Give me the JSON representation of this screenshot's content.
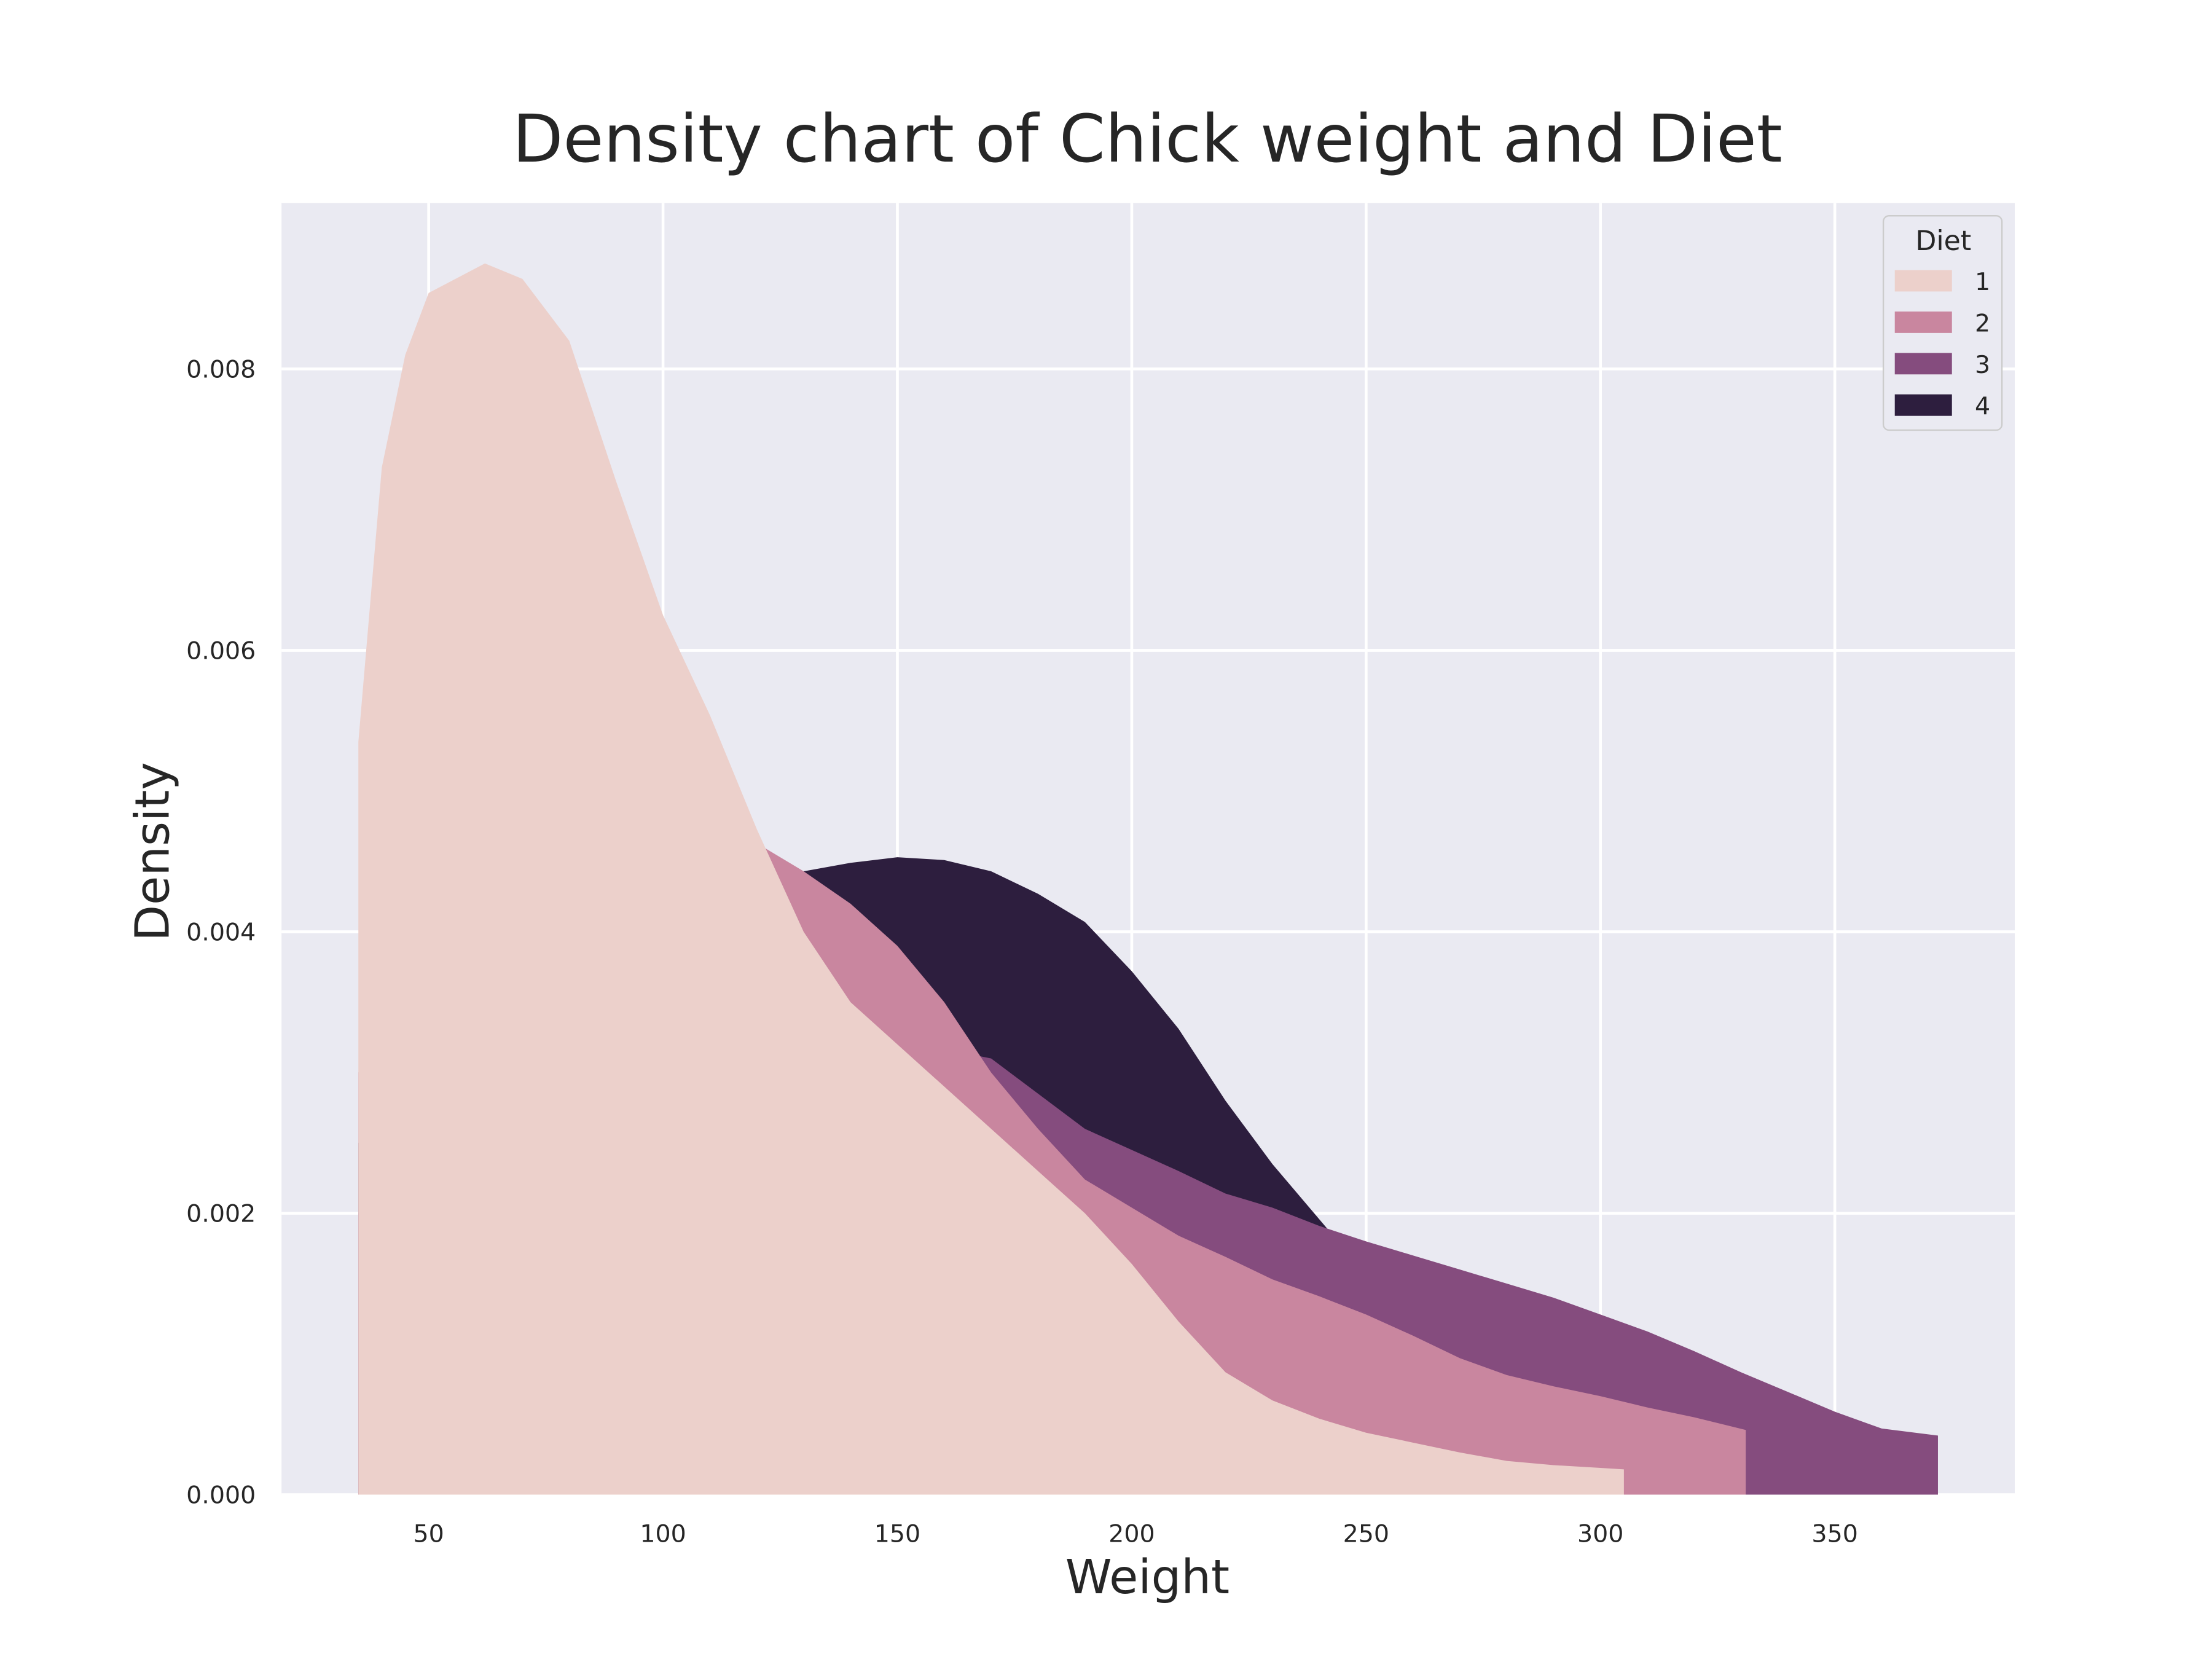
{
  "chart_data": {
    "type": "area",
    "title": "Density chart of Chick weight and Diet",
    "x_label": "Weight",
    "y_label": "Density",
    "legend_title": "Diet",
    "legend_position": "upper right",
    "xlim": [
      18.6,
      388.4
    ],
    "xticks": [
      50,
      100,
      150,
      200,
      250,
      300,
      350
    ],
    "ylim": [
      0,
      0.00918
    ],
    "yticks": [
      {
        "value": 0,
        "label": "0.000"
      },
      {
        "value": 0.002,
        "label": "0.002"
      },
      {
        "value": 0.004,
        "label": "0.004"
      },
      {
        "value": 0.006,
        "label": "0.006"
      },
      {
        "value": 0.008,
        "label": "0.008"
      }
    ],
    "grid": true,
    "series": [
      {
        "name": "1",
        "color": "#ecd0cb",
        "x": [
          35,
          40,
          45,
          50,
          62,
          70,
          80,
          90,
          100,
          110,
          120,
          130,
          140,
          150,
          160,
          170,
          180,
          190,
          200,
          210,
          220,
          230,
          240,
          250,
          260,
          270,
          280,
          290,
          300,
          305
        ],
        "values": [
          0.00535,
          0.0073,
          0.0081,
          0.00854,
          0.00875,
          0.00864,
          0.0082,
          0.0072,
          0.00625,
          0.00554,
          0.00473,
          0.004,
          0.0035,
          0.0032,
          0.0029,
          0.0026,
          0.0023,
          0.002,
          0.00164,
          0.00123,
          0.00087,
          0.00067,
          0.00054,
          0.00044,
          0.00037,
          0.0003,
          0.00024,
          0.00021,
          0.00019,
          0.00018
        ]
      },
      {
        "name": "2",
        "color": "#c9869f",
        "x": [
          35,
          50,
          70,
          90,
          110,
          120,
          130,
          140,
          150,
          160,
          170,
          180,
          190,
          200,
          210,
          220,
          230,
          240,
          250,
          260,
          270,
          280,
          290,
          300,
          310,
          320,
          331
        ],
        "values": [
          0.003,
          0.004,
          0.0048,
          0.005,
          0.0048,
          0.00463,
          0.00443,
          0.0042,
          0.0039,
          0.0035,
          0.003,
          0.0026,
          0.00224,
          0.00204,
          0.00184,
          0.00169,
          0.00153,
          0.00141,
          0.00128,
          0.00113,
          0.00097,
          0.00085,
          0.00077,
          0.0007,
          0.00062,
          0.00055,
          0.00046
        ]
      },
      {
        "name": "3",
        "color": "#854c7e",
        "x": [
          35,
          60,
          100,
          140,
          170,
          190,
          200,
          210,
          220,
          230,
          240,
          250,
          260,
          270,
          280,
          290,
          300,
          310,
          320,
          330,
          340,
          350,
          360,
          372
        ],
        "values": [
          0.002,
          0.0025,
          0.003,
          0.0033,
          0.0031,
          0.0026,
          0.00245,
          0.0023,
          0.00214,
          0.00204,
          0.00191,
          0.0018,
          0.0017,
          0.0016,
          0.0015,
          0.0014,
          0.00128,
          0.00116,
          0.00102,
          0.00087,
          0.00073,
          0.00059,
          0.00047,
          0.00042
        ]
      },
      {
        "name": "4",
        "color": "#2d1e3e",
        "x": [
          35,
          60,
          90,
          110,
          125,
          140,
          150,
          160,
          170,
          180,
          190,
          200,
          210,
          220,
          230,
          243
        ],
        "values": [
          0.0025,
          0.0033,
          0.004,
          0.0043,
          0.0044,
          0.00449,
          0.00453,
          0.00451,
          0.00443,
          0.00427,
          0.00407,
          0.00372,
          0.00331,
          0.0028,
          0.00235,
          0.00184
        ]
      }
    ]
  }
}
